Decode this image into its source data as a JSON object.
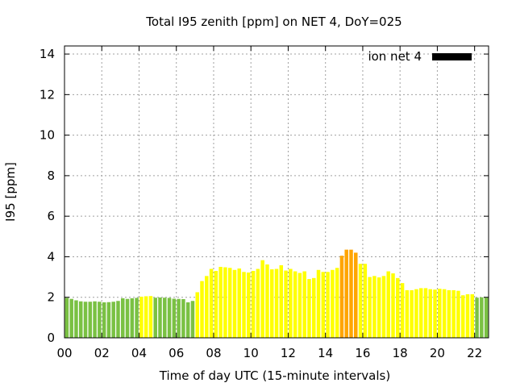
{
  "chart_data": {
    "type": "bar",
    "title": "Total I95 zenith [ppm] on NET 4, DoY=025",
    "xlabel": "Time of day UTC (15-minute intervals)",
    "ylabel": "I95 [ppm]",
    "xlim": [
      0,
      22.75
    ],
    "ylim": [
      0,
      14.4
    ],
    "xticks": [
      0,
      2,
      4,
      6,
      8,
      10,
      12,
      14,
      16,
      18,
      20,
      22
    ],
    "xtick_labels": [
      "00",
      "02",
      "04",
      "06",
      "08",
      "10",
      "12",
      "14",
      "16",
      "18",
      "20",
      "22"
    ],
    "yticks": [
      0,
      2,
      4,
      6,
      8,
      10,
      12,
      14
    ],
    "ytick_labels": [
      "0",
      "2",
      "4",
      "6",
      "8",
      "10",
      "12",
      "14"
    ],
    "grid": true,
    "legend": {
      "placement": "top-right",
      "entries": [
        {
          "label": "ion net 4",
          "color": "#000000"
        }
      ]
    },
    "bar_interval_hours": 0.25,
    "colors": {
      "low": "#7ac143",
      "medium": "#ffff00",
      "high": "#ffa500"
    },
    "color_thresholds": {
      "green_max": 2.0,
      "yellow_max": 4.0
    },
    "x": [
      0.0,
      0.25,
      0.5,
      0.75,
      1.0,
      1.25,
      1.5,
      1.75,
      2.0,
      2.25,
      2.5,
      2.75,
      3.0,
      3.25,
      3.5,
      3.75,
      4.0,
      4.25,
      4.5,
      4.75,
      5.0,
      5.25,
      5.5,
      5.75,
      6.0,
      6.25,
      6.5,
      6.75,
      7.0,
      7.25,
      7.5,
      7.75,
      8.0,
      8.25,
      8.5,
      8.75,
      9.0,
      9.25,
      9.5,
      9.75,
      10.0,
      10.25,
      10.5,
      10.75,
      11.0,
      11.25,
      11.5,
      11.75,
      12.0,
      12.25,
      12.5,
      12.75,
      13.0,
      13.25,
      13.5,
      13.75,
      14.0,
      14.25,
      14.5,
      14.75,
      15.0,
      15.25,
      15.5,
      15.75,
      16.0,
      16.25,
      16.5,
      16.75,
      17.0,
      17.25,
      17.5,
      17.75,
      18.0,
      18.25,
      18.5,
      18.75,
      19.0,
      19.25,
      19.5,
      19.75,
      20.0,
      20.25,
      20.5,
      20.75,
      21.0,
      21.25,
      21.5,
      21.75,
      22.0,
      22.25,
      22.5
    ],
    "values": [
      1.97,
      1.92,
      1.85,
      1.8,
      1.78,
      1.78,
      1.8,
      1.78,
      1.75,
      1.76,
      1.78,
      1.82,
      1.95,
      1.92,
      1.95,
      1.97,
      2.03,
      2.05,
      2.06,
      1.98,
      1.99,
      1.98,
      1.97,
      1.93,
      1.92,
      1.91,
      1.75,
      1.82,
      2.25,
      2.8,
      3.05,
      3.4,
      3.3,
      3.5,
      3.48,
      3.45,
      3.35,
      3.42,
      3.25,
      3.22,
      3.3,
      3.4,
      3.83,
      3.62,
      3.38,
      3.4,
      3.58,
      3.32,
      3.4,
      3.28,
      3.2,
      3.28,
      2.9,
      2.95,
      3.35,
      3.25,
      3.25,
      3.35,
      3.45,
      4.05,
      4.35,
      4.35,
      4.2,
      3.65,
      3.65,
      3.0,
      3.05,
      2.98,
      3.05,
      3.28,
      3.18,
      2.95,
      2.7,
      2.35,
      2.35,
      2.4,
      2.45,
      2.45,
      2.4,
      2.38,
      2.42,
      2.4,
      2.35,
      2.35,
      2.32,
      2.1,
      2.15,
      2.15,
      1.98,
      2.0,
      1.98
    ]
  }
}
